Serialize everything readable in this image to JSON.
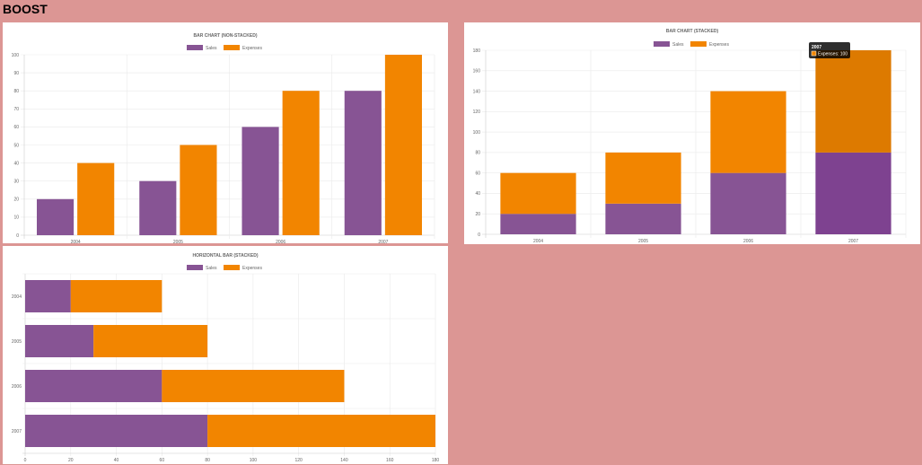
{
  "page": {
    "title": "BOOST"
  },
  "colors": {
    "background": "#dc9694",
    "sales": "#875494",
    "expenses": "#f28500",
    "grid": "#e9e9e9"
  },
  "chart_data": [
    {
      "type": "bar",
      "title": "BAR CHART (NON-STACKED)",
      "stacked": false,
      "orientation": "vertical",
      "categories": [
        "2004",
        "2005",
        "2006",
        "2007"
      ],
      "series": [
        {
          "name": "Sales",
          "values": [
            20,
            30,
            60,
            80
          ]
        },
        {
          "name": "Expenses",
          "values": [
            40,
            50,
            80,
            100
          ]
        }
      ],
      "ylim": [
        0,
        100
      ],
      "yticks": [
        "0",
        "10",
        "20",
        "30",
        "40",
        "50",
        "60",
        "70",
        "80",
        "90",
        "100"
      ],
      "legend": "top",
      "grid": true
    },
    {
      "type": "bar",
      "title": "BAR CHART (STACKED)",
      "stacked": true,
      "orientation": "vertical",
      "categories": [
        "2004",
        "2005",
        "2006",
        "2007"
      ],
      "series": [
        {
          "name": "Sales",
          "values": [
            20,
            30,
            60,
            80
          ]
        },
        {
          "name": "Expenses",
          "values": [
            40,
            50,
            80,
            100
          ]
        }
      ],
      "ylim": [
        0,
        180
      ],
      "yticks": [
        "0",
        "20",
        "40",
        "60",
        "80",
        "100",
        "120",
        "140",
        "160",
        "180"
      ],
      "legend": "top",
      "grid": true,
      "tooltip": {
        "title": "2007",
        "label": "Expenses: 100"
      }
    },
    {
      "type": "bar",
      "title": "HORIZONTAL BAR (STACKED)",
      "stacked": true,
      "orientation": "horizontal",
      "categories": [
        "2004",
        "2005",
        "2006",
        "2007"
      ],
      "series": [
        {
          "name": "Sales",
          "values": [
            20,
            30,
            60,
            80
          ]
        },
        {
          "name": "Expenses",
          "values": [
            40,
            50,
            80,
            100
          ]
        }
      ],
      "xlim": [
        0,
        180
      ],
      "xticks": [
        "0",
        "20",
        "40",
        "60",
        "80",
        "100",
        "120",
        "140",
        "160",
        "180"
      ],
      "legend": "top",
      "grid": true
    }
  ]
}
